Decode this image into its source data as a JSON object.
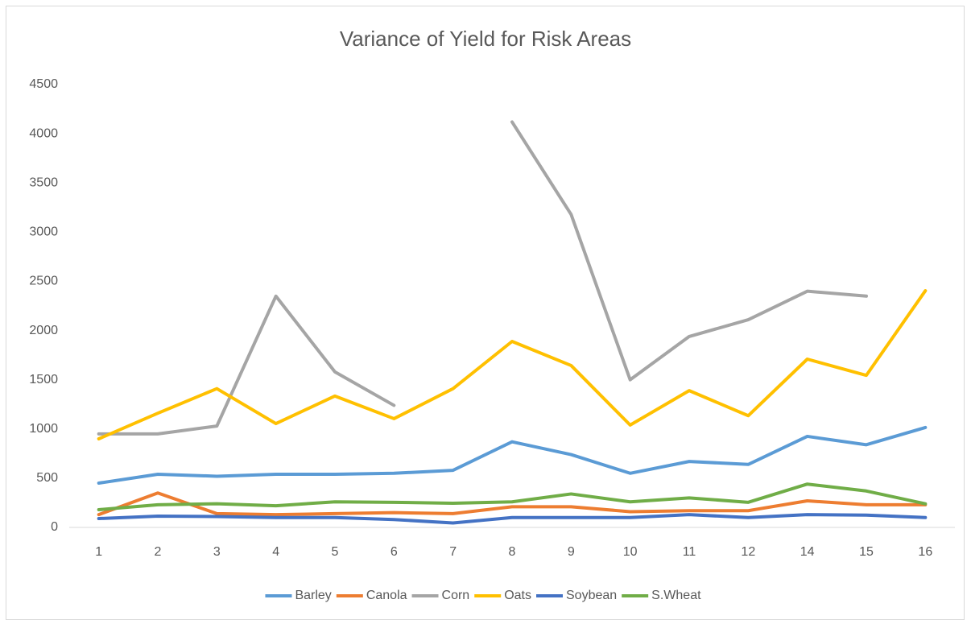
{
  "chart_data": {
    "type": "line",
    "title": "Variance of Yield for Risk Areas",
    "categories": [
      "1",
      "2",
      "3",
      "4",
      "5",
      "6",
      "7",
      "8",
      "9",
      "10",
      "11",
      "12",
      "14",
      "15",
      "16"
    ],
    "ylim": [
      0,
      4500
    ],
    "yticks": [
      0,
      500,
      1000,
      1500,
      2000,
      2500,
      3000,
      3500,
      4000,
      4500
    ],
    "grid": false,
    "legend": "bottom",
    "series": [
      {
        "name": "Barley",
        "color": "#5b9bd5",
        "values": [
          450,
          540,
          520,
          540,
          540,
          550,
          580,
          870,
          740,
          550,
          670,
          640,
          925,
          840,
          1015
        ]
      },
      {
        "name": "Canola",
        "color": "#ed7d31",
        "values": [
          130,
          350,
          140,
          130,
          140,
          150,
          140,
          210,
          210,
          160,
          170,
          170,
          270,
          230,
          230
        ]
      },
      {
        "name": "Corn",
        "color": "#a5a5a5",
        "values": [
          950,
          950,
          1030,
          2350,
          1580,
          1240,
          null,
          4120,
          3180,
          1500,
          1940,
          2110,
          2400,
          2350,
          null
        ]
      },
      {
        "name": "Oats",
        "color": "#ffc000",
        "values": [
          900,
          1160,
          1410,
          1055,
          1335,
          1105,
          1410,
          1890,
          1645,
          1040,
          1390,
          1135,
          1710,
          1545,
          2405
        ]
      },
      {
        "name": "Soybean",
        "color": "#4472c4",
        "values": [
          90,
          115,
          110,
          100,
          100,
          80,
          45,
          100,
          100,
          100,
          130,
          100,
          130,
          125,
          100
        ]
      },
      {
        "name": "S.Wheat",
        "color": "#70ad47",
        "values": [
          180,
          230,
          240,
          220,
          260,
          255,
          245,
          260,
          340,
          260,
          300,
          255,
          440,
          370,
          240
        ]
      }
    ]
  }
}
